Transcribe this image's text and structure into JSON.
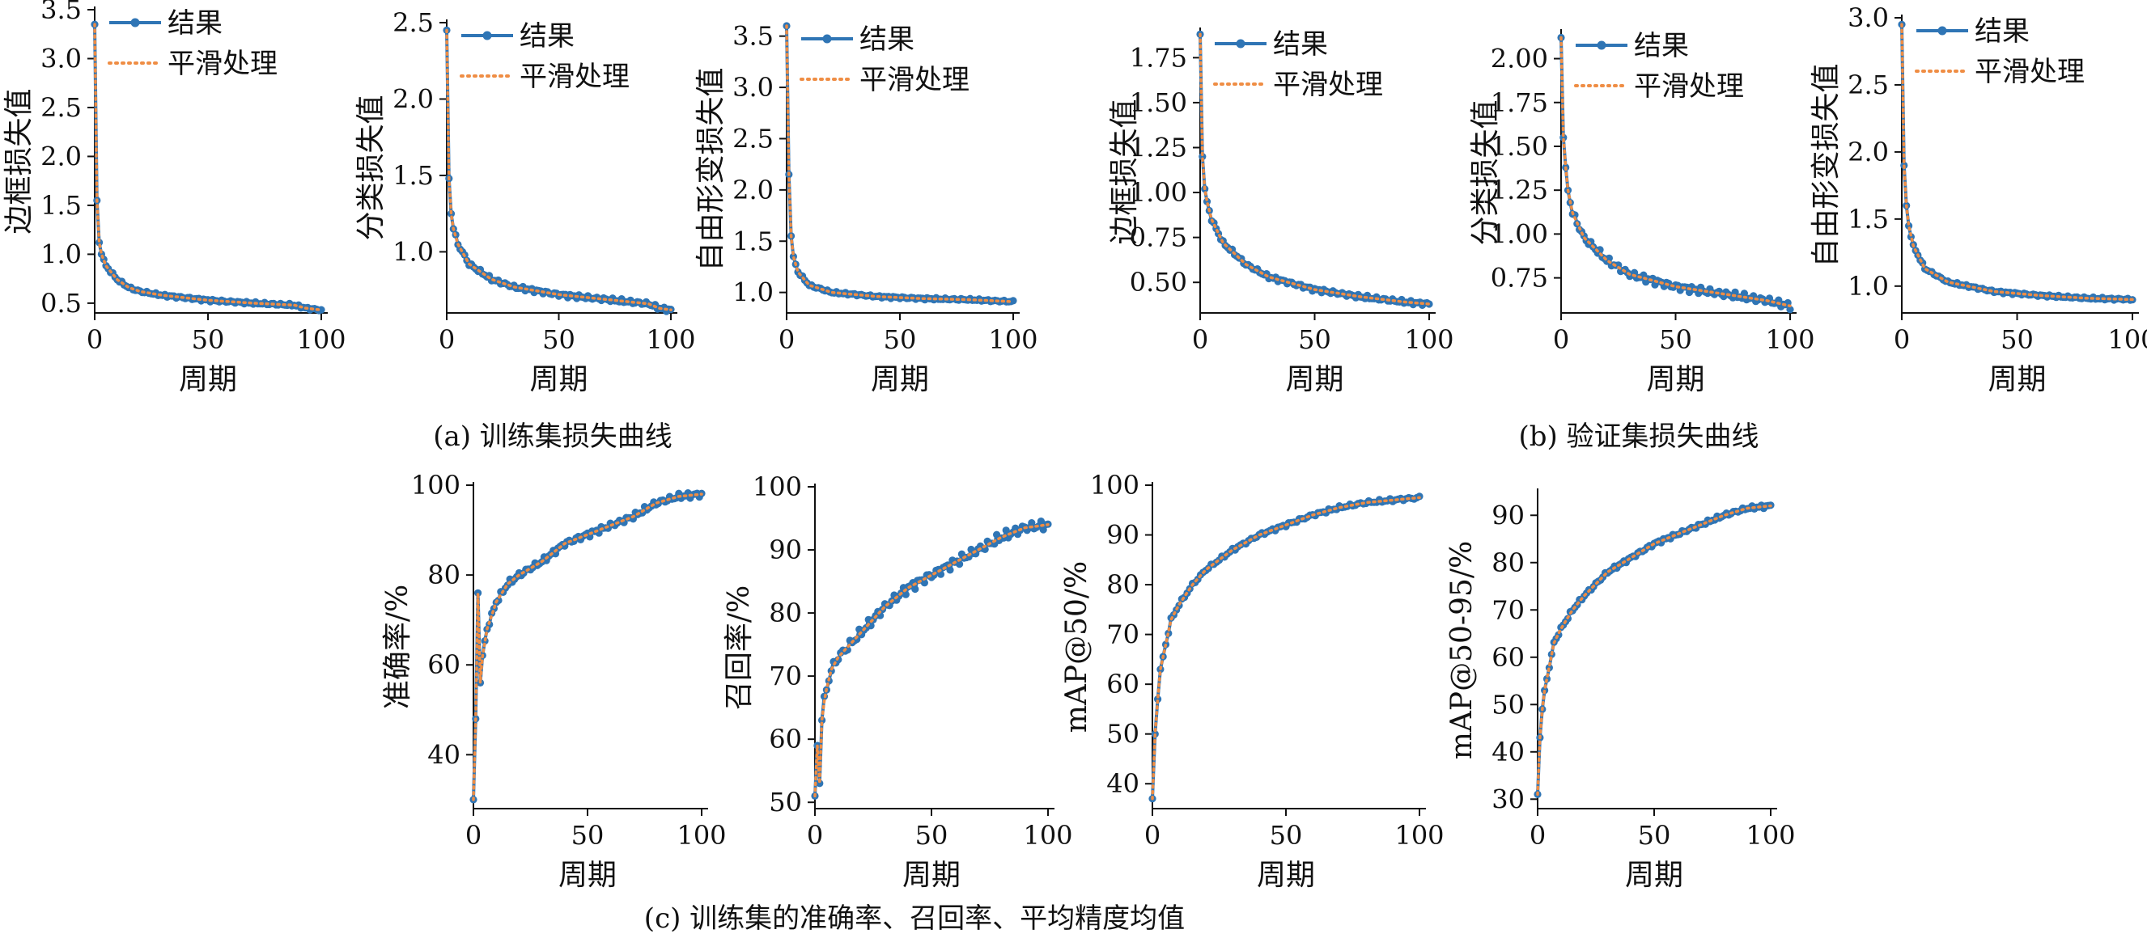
{
  "legend": {
    "result": "结果",
    "smooth": "平滑处理"
  },
  "colors": {
    "result": "#2f75b5",
    "smooth": "#ef8d44",
    "axis": "#111111"
  },
  "captions": {
    "a": "(a) 训练集损失曲线",
    "b": "(b) 验证集损失曲线",
    "c": "(c) 训练集的准确率、召回率、平均精度均值"
  },
  "chart_data": [
    {
      "type": "line",
      "group": "a",
      "xlabel": "周期",
      "ylabel": "边框损失值",
      "xlim": [
        0,
        100
      ],
      "ylim": [
        0.4,
        3.5
      ],
      "xticks": [
        0,
        50,
        100
      ],
      "yticks": [
        0.5,
        1.0,
        1.5,
        2.0,
        2.5,
        3.0,
        3.5
      ],
      "ytick_decimals": 1,
      "legend": "top-right",
      "key_points": [
        [
          0,
          3.35
        ],
        [
          1,
          1.55
        ],
        [
          2,
          1.12
        ],
        [
          3,
          1.0
        ],
        [
          5,
          0.88
        ],
        [
          10,
          0.74
        ],
        [
          15,
          0.66
        ],
        [
          20,
          0.62
        ],
        [
          30,
          0.58
        ],
        [
          50,
          0.53
        ],
        [
          70,
          0.5
        ],
        [
          88,
          0.48
        ],
        [
          93,
          0.45
        ],
        [
          100,
          0.43
        ]
      ],
      "noise": 0.012,
      "series": [
        {
          "name": "结果"
        },
        {
          "name": "平滑处理"
        }
      ]
    },
    {
      "type": "line",
      "group": "a",
      "xlabel": "周期",
      "ylabel": "分类损失值",
      "xlim": [
        0,
        100
      ],
      "ylim": [
        0.6,
        2.5
      ],
      "xticks": [
        0,
        50,
        100
      ],
      "yticks": [
        1.0,
        1.5,
        2.0,
        2.5
      ],
      "ytick_decimals": 1,
      "legend": "top-right",
      "key_points": [
        [
          0,
          2.45
        ],
        [
          1,
          1.48
        ],
        [
          2,
          1.25
        ],
        [
          3,
          1.15
        ],
        [
          5,
          1.05
        ],
        [
          10,
          0.92
        ],
        [
          20,
          0.82
        ],
        [
          30,
          0.77
        ],
        [
          50,
          0.72
        ],
        [
          70,
          0.69
        ],
        [
          90,
          0.66
        ],
        [
          95,
          0.63
        ],
        [
          100,
          0.62
        ]
      ],
      "noise": 0.012,
      "series": [
        {
          "name": "结果"
        },
        {
          "name": "平滑处理"
        }
      ]
    },
    {
      "type": "line",
      "group": "a",
      "xlabel": "周期",
      "ylabel": "自由形变损失值",
      "xlim": [
        0,
        100
      ],
      "ylim": [
        0.8,
        3.6
      ],
      "xticks": [
        0,
        50,
        100
      ],
      "yticks": [
        1.0,
        1.5,
        2.0,
        2.5,
        3.0,
        3.5
      ],
      "ytick_decimals": 1,
      "legend": "top-right",
      "key_points": [
        [
          0,
          3.6
        ],
        [
          1,
          2.15
        ],
        [
          2,
          1.55
        ],
        [
          3,
          1.35
        ],
        [
          5,
          1.2
        ],
        [
          10,
          1.07
        ],
        [
          20,
          1.0
        ],
        [
          40,
          0.96
        ],
        [
          60,
          0.94
        ],
        [
          80,
          0.93
        ],
        [
          100,
          0.91
        ]
      ],
      "noise": 0.01,
      "series": [
        {
          "name": "结果"
        },
        {
          "name": "平滑处理"
        }
      ]
    },
    {
      "type": "line",
      "group": "b",
      "xlabel": "周期",
      "ylabel": "边框损失值",
      "xlim": [
        0,
        100
      ],
      "ylim": [
        0.33,
        1.9
      ],
      "xticks": [
        0,
        50,
        100
      ],
      "yticks": [
        0.5,
        0.75,
        1.0,
        1.25,
        1.5,
        1.75
      ],
      "ytick_decimals": 2,
      "legend": "top-right",
      "key_points": [
        [
          0,
          1.88
        ],
        [
          1,
          1.2
        ],
        [
          2,
          1.02
        ],
        [
          3,
          0.95
        ],
        [
          5,
          0.85
        ],
        [
          10,
          0.72
        ],
        [
          20,
          0.6
        ],
        [
          30,
          0.53
        ],
        [
          50,
          0.46
        ],
        [
          70,
          0.42
        ],
        [
          90,
          0.39
        ],
        [
          100,
          0.38
        ]
      ],
      "noise": 0.01,
      "series": [
        {
          "name": "结果"
        },
        {
          "name": "平滑处理"
        }
      ]
    },
    {
      "type": "line",
      "group": "b",
      "xlabel": "周期",
      "ylabel": "分类损失值",
      "xlim": [
        0,
        100
      ],
      "ylim": [
        0.55,
        2.15
      ],
      "xticks": [
        0,
        50,
        100
      ],
      "yticks": [
        0.75,
        1.0,
        1.25,
        1.5,
        1.75,
        2.0
      ],
      "ytick_decimals": 2,
      "legend": "top-right",
      "key_points": [
        [
          0,
          2.12
        ],
        [
          1,
          1.55
        ],
        [
          2,
          1.38
        ],
        [
          3,
          1.25
        ],
        [
          5,
          1.12
        ],
        [
          10,
          0.98
        ],
        [
          20,
          0.85
        ],
        [
          30,
          0.77
        ],
        [
          50,
          0.7
        ],
        [
          70,
          0.66
        ],
        [
          90,
          0.62
        ],
        [
          100,
          0.59
        ]
      ],
      "noise": 0.018,
      "series": [
        {
          "name": "结果"
        },
        {
          "name": "平滑处理"
        }
      ]
    },
    {
      "type": "line",
      "group": "b",
      "xlabel": "周期",
      "ylabel": "自由形变损失值",
      "xlim": [
        0,
        100
      ],
      "ylim": [
        0.8,
        3.0
      ],
      "xticks": [
        0,
        50,
        100
      ],
      "yticks": [
        1.0,
        1.5,
        2.0,
        2.5,
        3.0
      ],
      "ytick_decimals": 1,
      "legend": "top-right",
      "key_points": [
        [
          0,
          2.95
        ],
        [
          1,
          1.9
        ],
        [
          2,
          1.6
        ],
        [
          3,
          1.45
        ],
        [
          5,
          1.3
        ],
        [
          10,
          1.13
        ],
        [
          20,
          1.03
        ],
        [
          40,
          0.96
        ],
        [
          60,
          0.93
        ],
        [
          80,
          0.91
        ],
        [
          100,
          0.9
        ]
      ],
      "noise": 0.008,
      "series": [
        {
          "name": "结果"
        },
        {
          "name": "平滑处理"
        }
      ]
    },
    {
      "type": "line",
      "group": "c",
      "xlabel": "周期",
      "ylabel": "准确率/%",
      "xlim": [
        0,
        100
      ],
      "ylim": [
        28,
        100
      ],
      "xticks": [
        0,
        50,
        100
      ],
      "yticks": [
        40,
        60,
        80,
        100
      ],
      "ytick_decimals": 0,
      "legend": "none",
      "key_points": [
        [
          0,
          30
        ],
        [
          1,
          48
        ],
        [
          2,
          76
        ],
        [
          3,
          56
        ],
        [
          4,
          62
        ],
        [
          5,
          65
        ],
        [
          6,
          68
        ],
        [
          8,
          71
        ],
        [
          10,
          74
        ],
        [
          15,
          78
        ],
        [
          20,
          80
        ],
        [
          30,
          83
        ],
        [
          40,
          87
        ],
        [
          50,
          89
        ],
        [
          60,
          91
        ],
        [
          70,
          93
        ],
        [
          80,
          96
        ],
        [
          90,
          97.5
        ],
        [
          100,
          98
        ]
      ],
      "noise": 0.6,
      "series": [
        {
          "name": "结果"
        },
        {
          "name": "平滑处理"
        }
      ]
    },
    {
      "type": "line",
      "group": "c",
      "xlabel": "周期",
      "ylabel": "召回率/%",
      "xlim": [
        0,
        100
      ],
      "ylim": [
        49,
        100
      ],
      "xticks": [
        0,
        50,
        100
      ],
      "yticks": [
        50,
        60,
        70,
        80,
        90,
        100
      ],
      "ytick_decimals": 0,
      "legend": "none",
      "key_points": [
        [
          0,
          51
        ],
        [
          1,
          59
        ],
        [
          2,
          53
        ],
        [
          3,
          63
        ],
        [
          4,
          66
        ],
        [
          5,
          68
        ],
        [
          7,
          71
        ],
        [
          10,
          73
        ],
        [
          15,
          75
        ],
        [
          20,
          77
        ],
        [
          30,
          81
        ],
        [
          40,
          84
        ],
        [
          50,
          86
        ],
        [
          60,
          88
        ],
        [
          70,
          90
        ],
        [
          80,
          92
        ],
        [
          90,
          93.5
        ],
        [
          100,
          94
        ]
      ],
      "noise": 0.7,
      "series": [
        {
          "name": "结果"
        },
        {
          "name": "平滑处理"
        }
      ]
    },
    {
      "type": "line",
      "group": "c",
      "xlabel": "周期",
      "ylabel": "mAP@50/%",
      "xlim": [
        0,
        100
      ],
      "ylim": [
        35,
        100
      ],
      "xticks": [
        0,
        50,
        100
      ],
      "yticks": [
        40,
        50,
        60,
        70,
        80,
        90,
        100
      ],
      "ytick_decimals": 0,
      "legend": "none",
      "key_points": [
        [
          0,
          37
        ],
        [
          1,
          50
        ],
        [
          2,
          57
        ],
        [
          3,
          63
        ],
        [
          5,
          68
        ],
        [
          7,
          73
        ],
        [
          10,
          76
        ],
        [
          15,
          80
        ],
        [
          20,
          83
        ],
        [
          30,
          87
        ],
        [
          40,
          90
        ],
        [
          50,
          92
        ],
        [
          60,
          94
        ],
        [
          70,
          95.5
        ],
        [
          80,
          96.5
        ],
        [
          90,
          97
        ],
        [
          100,
          97.5
        ]
      ],
      "noise": 0.3,
      "series": [
        {
          "name": "结果"
        },
        {
          "name": "平滑处理"
        }
      ]
    },
    {
      "type": "line",
      "group": "c",
      "xlabel": "周期",
      "ylabel": "mAP@50-95/%",
      "xlim": [
        0,
        100
      ],
      "ylim": [
        28,
        95
      ],
      "xticks": [
        0,
        50,
        100
      ],
      "yticks": [
        30,
        40,
        50,
        60,
        70,
        80,
        90
      ],
      "ytick_decimals": 0,
      "legend": "none",
      "key_points": [
        [
          0,
          31
        ],
        [
          1,
          43
        ],
        [
          2,
          49
        ],
        [
          3,
          53
        ],
        [
          5,
          58
        ],
        [
          7,
          63
        ],
        [
          10,
          66
        ],
        [
          15,
          70
        ],
        [
          20,
          73
        ],
        [
          30,
          78
        ],
        [
          40,
          81
        ],
        [
          50,
          84
        ],
        [
          60,
          86
        ],
        [
          70,
          88
        ],
        [
          80,
          90
        ],
        [
          90,
          91.5
        ],
        [
          100,
          92
        ]
      ],
      "noise": 0.35,
      "series": [
        {
          "name": "结果"
        },
        {
          "name": "平滑处理"
        }
      ]
    }
  ]
}
